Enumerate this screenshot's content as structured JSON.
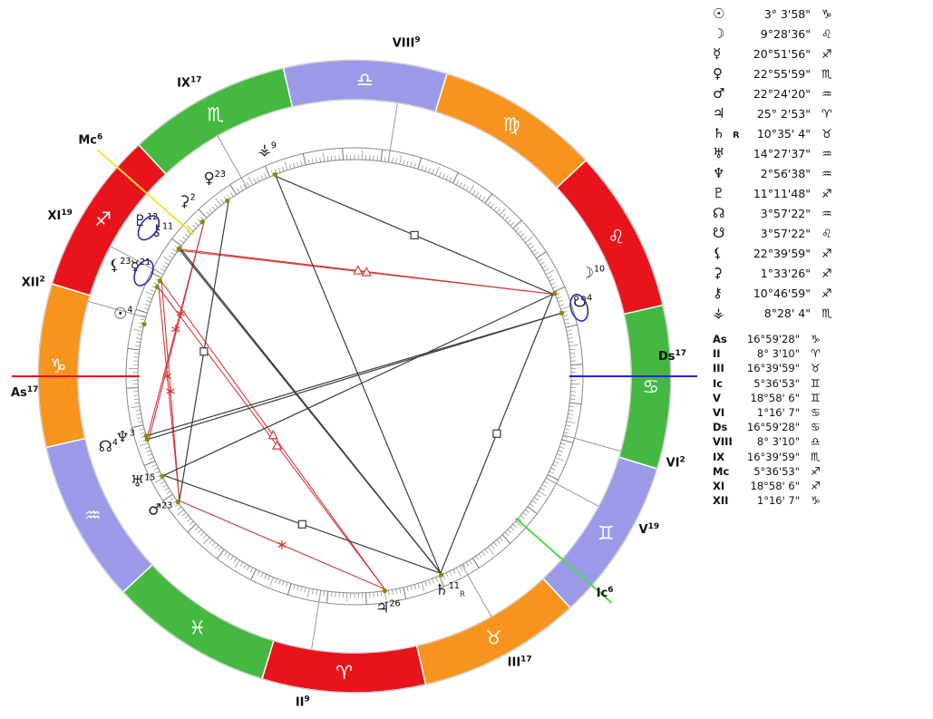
{
  "colors": {
    "fire": "#e8131b",
    "earth": "#f7941e",
    "air": "#9a9ae8",
    "water": "#45b842",
    "asc_axis": "#e8131b",
    "dsc_axis": "#2626d8",
    "mc_axis": "#f2e334",
    "ic_axis": "#44dd44",
    "aspect_hard": "#3c3c3c",
    "aspect_soft": "#d43a3a",
    "planet_dot": "#8a8a00",
    "highlight_ring": "#2a2ab8",
    "sign_glyph": "#ffffff",
    "text": "#111111"
  },
  "zodiac": [
    {
      "name": "aries",
      "glyph": "♈",
      "element": "fire"
    },
    {
      "name": "taurus",
      "glyph": "♉",
      "element": "earth"
    },
    {
      "name": "gemini",
      "glyph": "♊",
      "element": "air"
    },
    {
      "name": "cancer",
      "glyph": "♋",
      "element": "water"
    },
    {
      "name": "leo",
      "glyph": "♌",
      "element": "fire"
    },
    {
      "name": "virgo",
      "glyph": "♍",
      "element": "earth"
    },
    {
      "name": "libra",
      "glyph": "♎",
      "element": "air"
    },
    {
      "name": "scorpio",
      "glyph": "♏",
      "element": "water"
    },
    {
      "name": "sagittarius",
      "glyph": "♐",
      "element": "fire"
    },
    {
      "name": "capricorn",
      "glyph": "♑",
      "element": "earth"
    },
    {
      "name": "aquarius",
      "glyph": "♒",
      "element": "air"
    },
    {
      "name": "pisces",
      "glyph": "♓",
      "element": "water"
    }
  ],
  "bodies": [
    {
      "name": "sun",
      "glyph": "☉",
      "retro": "",
      "value": "3° 3'58\"",
      "sign": "♑",
      "lon": 273.0661,
      "sup": "4"
    },
    {
      "name": "moon",
      "glyph": "☽",
      "retro": "",
      "value": "9°28'36\"",
      "sign": "♌",
      "lon": 129.4767,
      "sup": "10"
    },
    {
      "name": "mercury",
      "glyph": "☿",
      "retro": "",
      "value": "20°51'56\"",
      "sign": "♐",
      "lon": 260.8656,
      "sup": "21"
    },
    {
      "name": "venus",
      "glyph": "♀",
      "retro": "",
      "value": "22°55'59\"",
      "sign": "♏",
      "lon": 232.9331,
      "sup": "23"
    },
    {
      "name": "mars",
      "glyph": "♂",
      "retro": "",
      "value": "22°24'20\"",
      "sign": "♒",
      "lon": 322.4056,
      "sup": "23"
    },
    {
      "name": "jupiter",
      "glyph": "♃",
      "retro": "",
      "value": "25° 2'53\"",
      "sign": "♈",
      "lon": 25.0481,
      "sup": "26"
    },
    {
      "name": "saturn",
      "glyph": "♄",
      "retro": "R",
      "value": "10°35' 4\"",
      "sign": "♉",
      "lon": 40.5844,
      "sup": "11"
    },
    {
      "name": "uranus",
      "glyph": "♅",
      "retro": "",
      "value": "14°27'37\"",
      "sign": "♒",
      "lon": 314.4603,
      "sup": "15"
    },
    {
      "name": "neptune",
      "glyph": "♆",
      "retro": "",
      "value": "2°56'38\"",
      "sign": "♒",
      "lon": 302.9439,
      "sup": "3"
    },
    {
      "name": "pluto",
      "glyph": "♇",
      "retro": "",
      "value": "11°11'48\"",
      "sign": "♐",
      "lon": 251.1967,
      "sup": "12"
    },
    {
      "name": "north-node",
      "glyph": "☊",
      "retro": "",
      "value": "3°57'22\"",
      "sign": "♒",
      "lon": 303.9561,
      "sup": "4"
    },
    {
      "name": "south-node",
      "glyph": "☋",
      "retro": "",
      "value": "3°57'22\"",
      "sign": "♌",
      "lon": 123.9561,
      "sup": "4"
    },
    {
      "name": "lilith",
      "glyph": "⚸",
      "retro": "",
      "value": "22°39'59\"",
      "sign": "♐",
      "lon": 262.6664,
      "sup": "23"
    },
    {
      "name": "ceres",
      "glyph": "⚳",
      "retro": "",
      "value": "1°33'26\"",
      "sign": "♐",
      "lon": 241.5572,
      "sup": "2"
    },
    {
      "name": "chiron",
      "glyph": "⚷",
      "retro": "",
      "value": "10°46'59\"",
      "sign": "♐",
      "lon": 250.7831,
      "sup": "11"
    },
    {
      "name": "vesta",
      "glyph": "⚶",
      "retro": "",
      "value": "8°28' 4\"",
      "sign": "♏",
      "lon": 218.4678,
      "sup": "9"
    }
  ],
  "houses": [
    {
      "name": "As",
      "value": "16°59'28\"",
      "sign": "♑",
      "lon": 286.9911,
      "sup": "17",
      "axis": "asc"
    },
    {
      "name": "II",
      "value": "8° 3'10\"",
      "sign": "♈",
      "lon": 8.0528,
      "sup": "9",
      "axis": ""
    },
    {
      "name": "III",
      "value": "16°39'59\"",
      "sign": "♉",
      "lon": 46.6664,
      "sup": "17",
      "axis": ""
    },
    {
      "name": "Ic",
      "value": "5°36'53\"",
      "sign": "♊",
      "lon": 65.6147,
      "sup": "6",
      "axis": "ic"
    },
    {
      "name": "V",
      "value": "18°58' 6\"",
      "sign": "♊",
      "lon": 78.9683,
      "sup": "19",
      "axis": ""
    },
    {
      "name": "VI",
      "value": "1°16' 7\"",
      "sign": "♋",
      "lon": 91.2686,
      "sup": "2",
      "axis": ""
    },
    {
      "name": "Ds",
      "value": "16°59'28\"",
      "sign": "♋",
      "lon": 106.9911,
      "sup": "17",
      "axis": "dsc"
    },
    {
      "name": "VIII",
      "value": "8° 3'10\"",
      "sign": "♎",
      "lon": 188.0528,
      "sup": "9",
      "axis": ""
    },
    {
      "name": "IX",
      "value": "16°39'59\"",
      "sign": "♏",
      "lon": 226.6664,
      "sup": "17",
      "axis": ""
    },
    {
      "name": "Mc",
      "value": "5°36'53\"",
      "sign": "♐",
      "lon": 245.6147,
      "sup": "6",
      "axis": "mc"
    },
    {
      "name": "XI",
      "value": "18°58' 6\"",
      "sign": "♐",
      "lon": 258.9683,
      "sup": "19",
      "axis": ""
    },
    {
      "name": "XII",
      "value": "1°16' 7\"",
      "sign": "♑",
      "lon": 271.2686,
      "sup": "2",
      "axis": ""
    }
  ],
  "aspects": [
    {
      "a": "moon",
      "b": "pluto",
      "type": "trine"
    },
    {
      "a": "moon",
      "b": "chiron",
      "type": "trine"
    },
    {
      "a": "mercury",
      "b": "jupiter",
      "type": "trine"
    },
    {
      "a": "lilith",
      "b": "jupiter",
      "type": "trine"
    },
    {
      "a": "mars",
      "b": "mercury",
      "type": "sextile"
    },
    {
      "a": "mars",
      "b": "lilith",
      "type": "sextile"
    },
    {
      "a": "mars",
      "b": "jupiter",
      "type": "sextile"
    },
    {
      "a": "neptune",
      "b": "ceres",
      "type": "sextile"
    },
    {
      "a": "north-node",
      "b": "ceres",
      "type": "sextile"
    },
    {
      "a": "venus",
      "b": "mars",
      "type": "square"
    },
    {
      "a": "saturn",
      "b": "moon",
      "type": "square"
    },
    {
      "a": "saturn",
      "b": "uranus",
      "type": "square"
    },
    {
      "a": "vesta",
      "b": "moon",
      "type": "square"
    },
    {
      "a": "uranus",
      "b": "moon",
      "type": "opposition"
    },
    {
      "a": "neptune",
      "b": "south-node",
      "type": "opposition"
    },
    {
      "a": "north-node",
      "b": "south-node",
      "type": "opposition"
    },
    {
      "a": "vesta",
      "b": "saturn",
      "type": "opposition"
    },
    {
      "a": "saturn",
      "b": "pluto",
      "type": "quincunx"
    },
    {
      "a": "saturn",
      "b": "chiron",
      "type": "quincunx"
    }
  ],
  "highlights": [
    "south-node",
    "pluto",
    "mercury"
  ]
}
